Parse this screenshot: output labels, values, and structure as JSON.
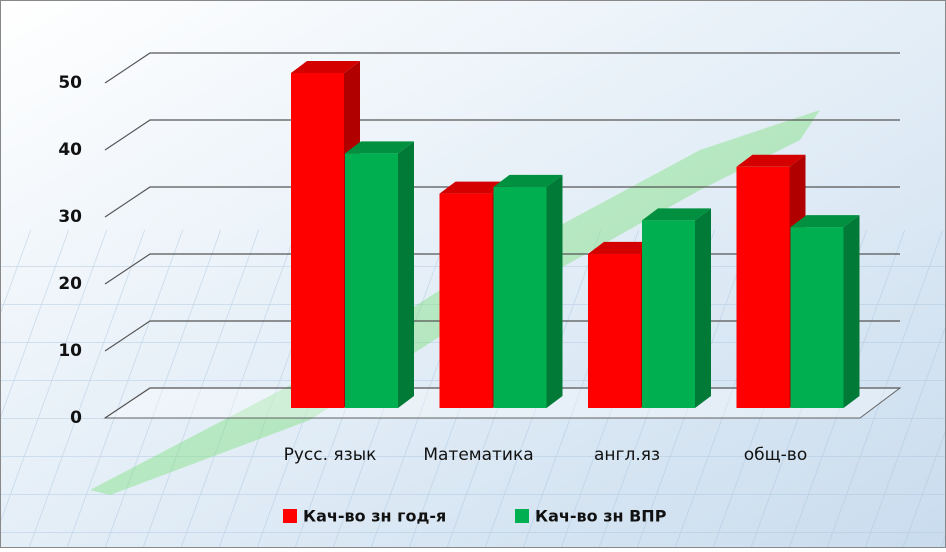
{
  "chart_data": {
    "type": "bar3d",
    "categories": [
      "Русс.  язык",
      "Математика",
      "англ.яз",
      "общ-во"
    ],
    "series": [
      {
        "name": "Кач-во зн год-я",
        "color": "#ff0000",
        "side": "#b00000",
        "top": "#d40000",
        "values": [
          50,
          32,
          23,
          36
        ]
      },
      {
        "name": "Кач-во зн ВПР",
        "color": "#00b050",
        "side": "#007a36",
        "top": "#009040",
        "values": [
          38,
          33,
          28,
          27
        ]
      }
    ],
    "ylim": [
      0,
      50
    ],
    "yticks": [
      0,
      10,
      20,
      30,
      40,
      50
    ],
    "grid": true,
    "legend": "bottom"
  }
}
